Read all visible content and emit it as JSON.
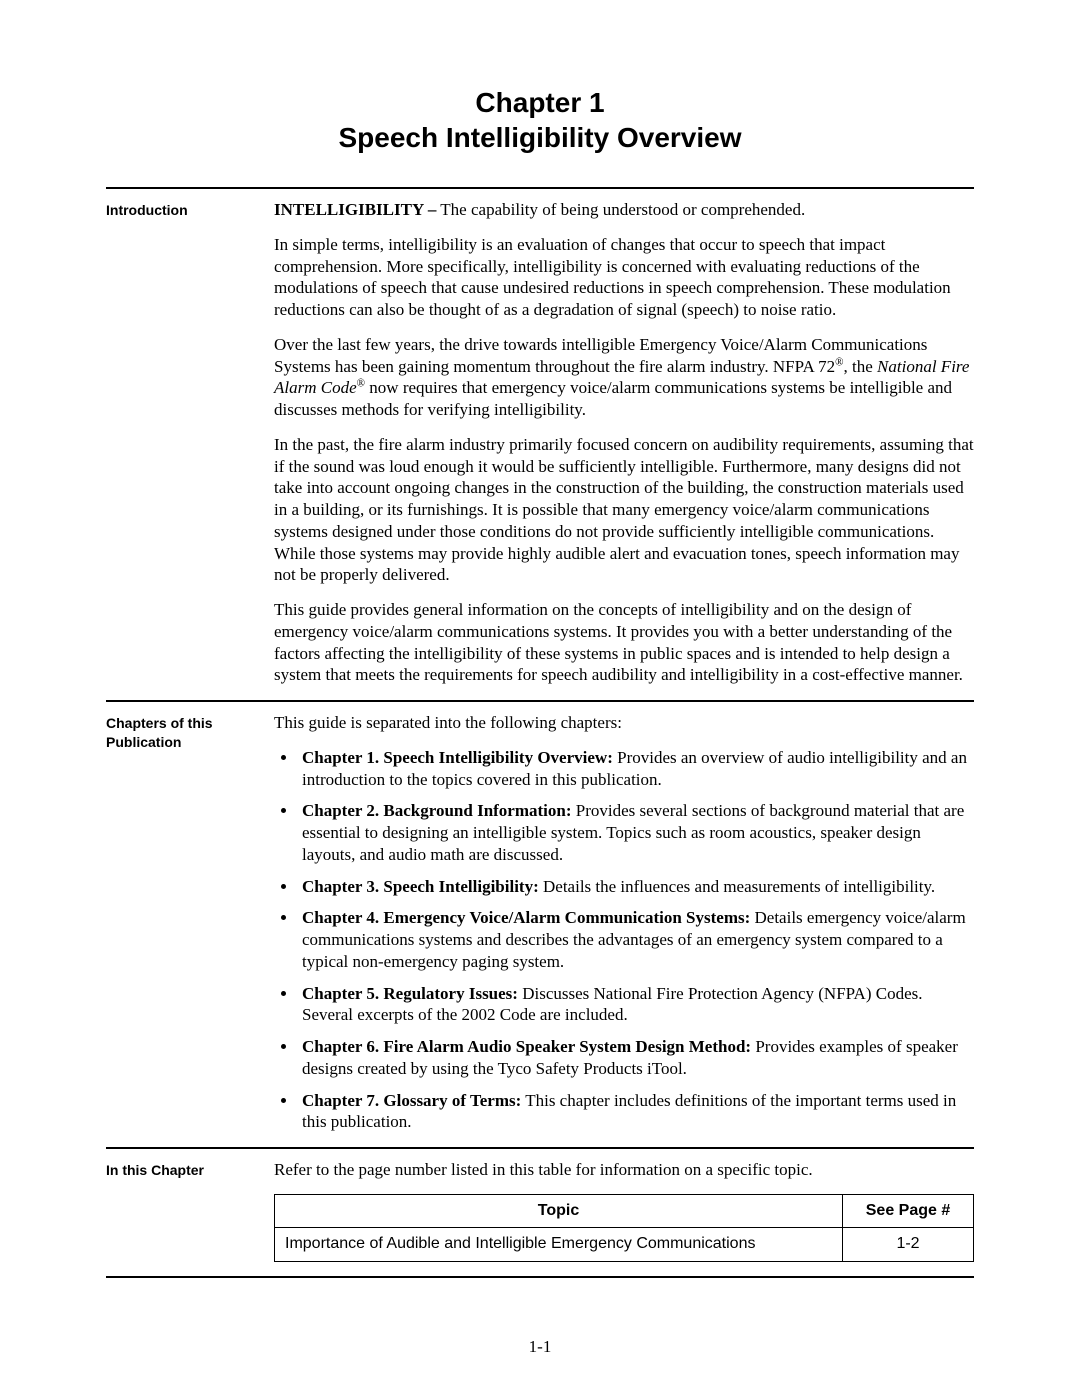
{
  "title_line1": "Chapter 1",
  "title_line2": "Speech Intelligibility Overview",
  "sections": {
    "intro": {
      "label": "Introduction",
      "def_term": "INTELLIGIBILITY –",
      "def_text": " The capability of being understood or comprehended.",
      "p1": "In simple terms, intelligibility is an evaluation of changes that occur to speech that impact comprehension.  More specifically, intelligibility is concerned with evaluating reductions of the modulations of speech that cause undesired reductions in speech comprehension.  These modulation reductions can also be thought of as a degradation of signal (speech) to noise ratio.",
      "p2_a": "Over the last few years, the drive towards intelligible Emergency Voice/Alarm Communications Systems has been gaining momentum throughout the fire alarm industry.  NFPA 72",
      "p2_sup1": "®",
      "p2_b": ", the ",
      "p2_italic": "National Fire Alarm Code",
      "p2_sup2": "®",
      "p2_c": " now requires that emergency voice/alarm communications systems be intelligible and discusses methods for verifying intelligibility.",
      "p3": "In the past, the fire alarm industry primarily focused concern on audibility requirements, assuming that if the sound was loud enough it would be sufficiently intelligible.  Furthermore, many designs did not take into account ongoing changes in the construction of the building, the construction materials used in a building, or its furnishings.  It is possible that many emergency voice/alarm communications systems designed under those conditions do not provide sufficiently intelligible communications.  While those systems may provide highly audible alert and evacuation tones, speech information may not be properly delivered.",
      "p4": "This guide provides general information on the concepts of intelligibility and on the design of emergency voice/alarm communications systems.  It provides you with a better understanding of the factors affecting the intelligibility of these systems in public spaces and is intended to help design a system that meets the requirements for speech audibility and intelligibility in a cost-effective manner."
    },
    "chapters": {
      "label": "Chapters of this Publication",
      "lead": "This guide is separated into the following chapters:",
      "items": [
        {
          "bold": "Chapter 1.  Speech Intelligibility Overview:",
          "text": "  Provides an overview of audio intelligibility and an introduction to the topics covered in this publication."
        },
        {
          "bold": "Chapter 2.  Background Information:",
          "text": "  Provides several sections of background material that are essential to designing an intelligible system.  Topics such as room acoustics, speaker design layouts, and audio math are discussed."
        },
        {
          "bold": "Chapter 3.  Speech Intelligibility:",
          "text": "  Details the influences and measurements of intelligibility."
        },
        {
          "bold": "Chapter 4.  Emergency Voice/Alarm Communication Systems:",
          "text": "  Details emergency voice/alarm communications systems and describes the advantages of an emergency system compared to a typical non-emergency paging system."
        },
        {
          "bold": "Chapter 5.  Regulatory Issues:",
          "text": "  Discusses National Fire Protection Agency (NFPA) Codes.  Several excerpts of the 2002 Code are included."
        },
        {
          "bold": "Chapter 6.  Fire Alarm Audio Speaker System Design Method:",
          "text": "  Provides examples of speaker designs created by using the Tyco Safety Products iTool."
        },
        {
          "bold": "Chapter 7.  Glossary of Terms:",
          "text": "  This chapter includes definitions of the important terms used in this publication."
        }
      ]
    },
    "inthis": {
      "label": "In this Chapter",
      "lead": "Refer to the page number listed in this table for information on a specific topic.",
      "table": {
        "headers": [
          "Topic",
          "See Page #"
        ],
        "rows": [
          [
            "Importance of Audible and Intelligible Emergency Communications",
            "1-2"
          ]
        ]
      }
    }
  },
  "page_number": "1-1"
}
